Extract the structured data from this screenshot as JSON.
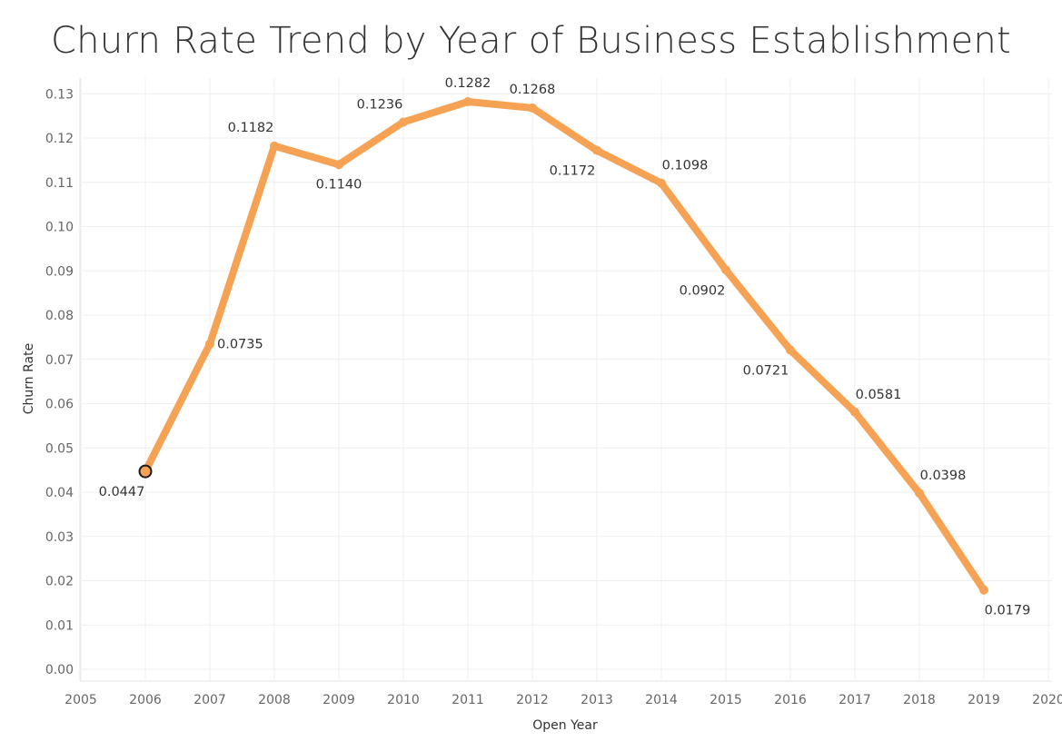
{
  "chart_data": {
    "type": "line",
    "title": "Churn Rate Trend by Year of Business Establishment",
    "xlabel": "Open Year",
    "ylabel": "Churn Rate",
    "x_ticks": [
      "2005",
      "2006",
      "2007",
      "2008",
      "2009",
      "2010",
      "2011",
      "2012",
      "2013",
      "2014",
      "2015",
      "2016",
      "2017",
      "2018",
      "2019",
      "2020"
    ],
    "y_ticks": [
      "0.00",
      "0.01",
      "0.02",
      "0.03",
      "0.04",
      "0.05",
      "0.06",
      "0.07",
      "0.08",
      "0.09",
      "0.10",
      "0.11",
      "0.12",
      "0.13"
    ],
    "xlim": [
      2005,
      2020
    ],
    "ylim": [
      0.0,
      0.13
    ],
    "grid": true,
    "line_color": "#F6A254",
    "highlight_color": "#F6A254",
    "highlight_stroke": "#1a1a1a",
    "highlighted_year": 2006,
    "series": [
      {
        "x": [
          2006,
          2007,
          2008,
          2009,
          2010,
          2011,
          2012,
          2013,
          2014,
          2015,
          2016,
          2017,
          2018,
          2019
        ],
        "values": [
          0.0447,
          0.0735,
          0.1182,
          0.114,
          0.1236,
          0.1282,
          0.1268,
          0.1172,
          0.1098,
          0.0902,
          0.0721,
          0.0581,
          0.0398,
          0.0179
        ],
        "labels": [
          "0.0447",
          "0.0735",
          "0.1182",
          "0.1140",
          "0.1236",
          "0.1282",
          "0.1268",
          "0.1172",
          "0.1098",
          "0.0902",
          "0.0721",
          "0.0581",
          "0.0398",
          "0.0179"
        ]
      }
    ]
  }
}
